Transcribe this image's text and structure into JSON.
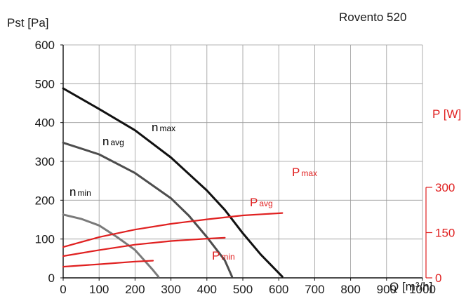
{
  "chart_data": {
    "type": "line",
    "title": "Rovento 520",
    "xlabel": "Q [m³/h]",
    "ylabel": "Pst [Pa]",
    "y2label": "P [W]",
    "xlim": [
      0,
      1000
    ],
    "ylim": [
      0,
      600
    ],
    "y2lim": [
      0,
      300
    ],
    "x_ticks": [
      "0",
      "100",
      "200",
      "300",
      "400",
      "500",
      "600",
      "700",
      "800",
      "900",
      "1000"
    ],
    "y_ticks": [
      "0",
      "100",
      "200",
      "300",
      "400",
      "500",
      "600"
    ],
    "y2_ticks": [
      "0",
      "150",
      "300"
    ],
    "grid": true,
    "pressure_series": [
      {
        "name": "n max",
        "label_main": "n",
        "label_sub": "max",
        "color": "#111111",
        "points": [
          [
            0,
            488
          ],
          [
            100,
            435
          ],
          [
            200,
            380
          ],
          [
            300,
            310
          ],
          [
            400,
            225
          ],
          [
            450,
            175
          ],
          [
            500,
            115
          ],
          [
            550,
            60
          ],
          [
            610,
            3
          ]
        ]
      },
      {
        "name": "n avg",
        "label_main": "n",
        "label_sub": "avg",
        "color": "#4d4d4d",
        "points": [
          [
            0,
            348
          ],
          [
            100,
            318
          ],
          [
            200,
            270
          ],
          [
            300,
            205
          ],
          [
            350,
            160
          ],
          [
            400,
            105
          ],
          [
            450,
            45
          ],
          [
            470,
            3
          ]
        ]
      },
      {
        "name": "n min",
        "label_main": "n",
        "label_sub": "min",
        "color": "#7a7a7a",
        "points": [
          [
            0,
            163
          ],
          [
            50,
            152
          ],
          [
            100,
            135
          ],
          [
            150,
            105
          ],
          [
            200,
            72
          ],
          [
            250,
            20
          ],
          [
            265,
            3
          ]
        ]
      }
    ],
    "power_series": [
      {
        "name": "P max",
        "label_main": "P",
        "label_sub": "max",
        "color": "#e02020",
        "points": [
          [
            0,
            102
          ],
          [
            100,
            135
          ],
          [
            200,
            160
          ],
          [
            300,
            179
          ],
          [
            400,
            194
          ],
          [
            500,
            207
          ],
          [
            610,
            215
          ]
        ]
      },
      {
        "name": "P avg",
        "label_main": "P",
        "label_sub": "avg",
        "color": "#e02020",
        "points": [
          [
            0,
            72
          ],
          [
            100,
            92
          ],
          [
            200,
            110
          ],
          [
            300,
            122
          ],
          [
            400,
            130
          ],
          [
            450,
            133
          ]
        ]
      },
      {
        "name": "P min",
        "label_main": "P",
        "label_sub": "min",
        "color": "#e02020",
        "points": [
          [
            0,
            37
          ],
          [
            100,
            45
          ],
          [
            200,
            54
          ],
          [
            250,
            57
          ]
        ]
      }
    ]
  }
}
